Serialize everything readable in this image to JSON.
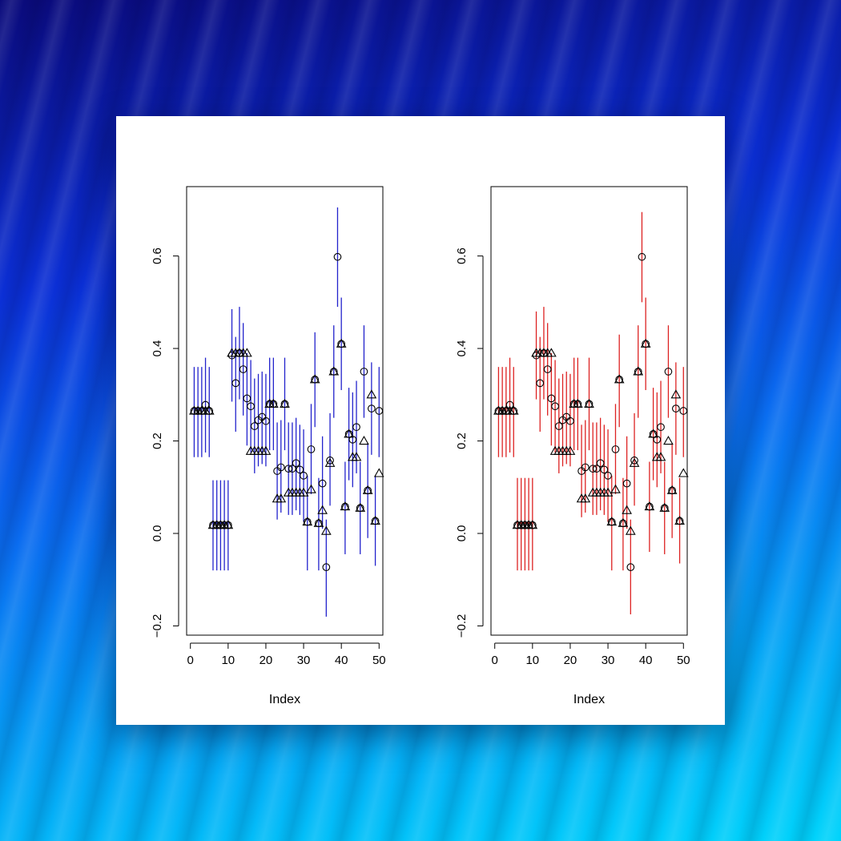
{
  "background": {
    "colors": [
      "#0a0a7a",
      "#0b2fd6",
      "#05a8f6",
      "#00d4fb"
    ]
  },
  "chart_data": [
    {
      "type": "scatter",
      "panel": "left",
      "error_bar_color": "#2222cc",
      "xlabel": "Index",
      "ylabel": "",
      "xlim": [
        -1,
        51
      ],
      "ylim": [
        -0.22,
        0.75
      ],
      "xticks": [
        0,
        10,
        20,
        30,
        40,
        50
      ],
      "yticks": [
        -0.2,
        0.0,
        0.2,
        0.4,
        0.6
      ],
      "grid": false,
      "legend": "none",
      "x": [
        1,
        2,
        3,
        4,
        5,
        6,
        7,
        8,
        9,
        10,
        11,
        12,
        13,
        14,
        15,
        16,
        17,
        18,
        19,
        20,
        21,
        22,
        23,
        24,
        25,
        26,
        27,
        28,
        29,
        30,
        31,
        32,
        33,
        34,
        35,
        36,
        37,
        38,
        39,
        40,
        41,
        42,
        43,
        44,
        45,
        46,
        47,
        48,
        49,
        50
      ],
      "circle": [
        0.265,
        0.265,
        0.265,
        0.278,
        0.265,
        0.018,
        0.018,
        0.018,
        0.018,
        0.018,
        0.385,
        0.325,
        0.39,
        0.355,
        0.292,
        0.275,
        0.232,
        0.245,
        0.252,
        0.243,
        0.28,
        0.28,
        0.135,
        0.143,
        0.28,
        0.14,
        0.14,
        0.152,
        0.138,
        0.125,
        0.025,
        0.182,
        0.333,
        0.022,
        0.108,
        -0.073,
        0.158,
        0.35,
        0.598,
        0.41,
        0.058,
        0.215,
        0.203,
        0.23,
        0.055,
        0.35,
        0.093,
        0.27,
        0.027,
        0.265
      ],
      "triangle": [
        0.265,
        0.265,
        0.265,
        0.265,
        0.265,
        0.018,
        0.018,
        0.018,
        0.018,
        0.018,
        0.39,
        0.39,
        0.39,
        0.39,
        0.39,
        0.178,
        0.178,
        0.178,
        0.178,
        0.178,
        0.28,
        0.28,
        0.075,
        0.075,
        0.28,
        0.088,
        0.088,
        0.088,
        0.088,
        0.088,
        0.025,
        0.095,
        0.333,
        0.022,
        0.05,
        0.005,
        0.152,
        0.35,
        null,
        0.41,
        0.058,
        0.215,
        0.165,
        0.165,
        0.055,
        0.2,
        0.093,
        0.3,
        0.027,
        0.13
      ],
      "lower": [
        0.165,
        0.165,
        0.165,
        0.175,
        0.165,
        -0.08,
        -0.08,
        -0.08,
        -0.08,
        -0.08,
        0.285,
        0.22,
        0.29,
        0.255,
        0.19,
        0.175,
        0.13,
        0.145,
        0.15,
        0.145,
        0.18,
        0.18,
        0.03,
        0.045,
        0.18,
        0.04,
        0.04,
        0.05,
        0.04,
        0.025,
        -0.08,
        0.085,
        0.23,
        -0.08,
        0.01,
        -0.18,
        0.06,
        0.25,
        0.49,
        0.31,
        -0.045,
        0.115,
        0.1,
        0.13,
        -0.045,
        0.25,
        -0.01,
        0.17,
        -0.07,
        0.165
      ],
      "upper": [
        0.36,
        0.36,
        0.36,
        0.38,
        0.36,
        0.115,
        0.115,
        0.115,
        0.115,
        0.115,
        0.485,
        0.425,
        0.49,
        0.455,
        0.39,
        0.375,
        0.335,
        0.345,
        0.35,
        0.345,
        0.38,
        0.38,
        0.24,
        0.245,
        0.38,
        0.24,
        0.24,
        0.25,
        0.235,
        0.225,
        0.125,
        0.28,
        0.435,
        0.12,
        0.21,
        0.03,
        0.26,
        0.45,
        0.705,
        0.51,
        0.155,
        0.315,
        0.305,
        0.33,
        0.155,
        0.45,
        0.195,
        0.37,
        0.125,
        0.36
      ]
    },
    {
      "type": "scatter",
      "panel": "right",
      "error_bar_color": "#dd2222",
      "xlabel": "Index",
      "ylabel": "",
      "xlim": [
        -1,
        51
      ],
      "ylim": [
        -0.22,
        0.75
      ],
      "xticks": [
        0,
        10,
        20,
        30,
        40,
        50
      ],
      "yticks": [
        -0.2,
        0.0,
        0.2,
        0.4,
        0.6
      ],
      "grid": false,
      "legend": "none",
      "x": [
        1,
        2,
        3,
        4,
        5,
        6,
        7,
        8,
        9,
        10,
        11,
        12,
        13,
        14,
        15,
        16,
        17,
        18,
        19,
        20,
        21,
        22,
        23,
        24,
        25,
        26,
        27,
        28,
        29,
        30,
        31,
        32,
        33,
        34,
        35,
        36,
        37,
        38,
        39,
        40,
        41,
        42,
        43,
        44,
        45,
        46,
        47,
        48,
        49,
        50
      ],
      "circle": [
        0.265,
        0.265,
        0.265,
        0.278,
        0.265,
        0.018,
        0.018,
        0.018,
        0.018,
        0.018,
        0.385,
        0.325,
        0.39,
        0.355,
        0.292,
        0.275,
        0.232,
        0.245,
        0.252,
        0.243,
        0.28,
        0.28,
        0.135,
        0.143,
        0.28,
        0.14,
        0.14,
        0.152,
        0.138,
        0.125,
        0.025,
        0.182,
        0.333,
        0.022,
        0.108,
        -0.073,
        0.158,
        0.35,
        0.598,
        0.41,
        0.058,
        0.215,
        0.203,
        0.23,
        0.055,
        0.35,
        0.093,
        0.27,
        0.027,
        0.265
      ],
      "triangle": [
        0.265,
        0.265,
        0.265,
        0.265,
        0.265,
        0.018,
        0.018,
        0.018,
        0.018,
        0.018,
        0.39,
        0.39,
        0.39,
        0.39,
        0.39,
        0.178,
        0.178,
        0.178,
        0.178,
        0.178,
        0.28,
        0.28,
        0.075,
        0.075,
        0.28,
        0.088,
        0.088,
        0.088,
        0.088,
        0.088,
        0.025,
        0.095,
        0.333,
        0.022,
        0.05,
        0.005,
        0.152,
        0.35,
        null,
        0.41,
        0.058,
        0.215,
        0.165,
        0.165,
        0.055,
        0.2,
        0.093,
        0.3,
        0.027,
        0.13
      ],
      "lower": [
        0.165,
        0.165,
        0.165,
        0.175,
        0.165,
        -0.08,
        -0.08,
        -0.08,
        -0.08,
        -0.08,
        0.29,
        0.22,
        0.29,
        0.255,
        0.19,
        0.175,
        0.13,
        0.145,
        0.15,
        0.145,
        0.18,
        0.18,
        0.035,
        0.045,
        0.18,
        0.04,
        0.04,
        0.05,
        0.04,
        0.025,
        -0.08,
        0.085,
        0.23,
        -0.08,
        0.01,
        -0.175,
        0.06,
        0.25,
        0.5,
        0.31,
        -0.04,
        0.115,
        0.1,
        0.13,
        -0.045,
        0.25,
        -0.01,
        0.17,
        -0.065,
        0.165
      ],
      "upper": [
        0.36,
        0.36,
        0.36,
        0.38,
        0.36,
        0.12,
        0.12,
        0.12,
        0.12,
        0.12,
        0.48,
        0.425,
        0.49,
        0.455,
        0.39,
        0.375,
        0.335,
        0.345,
        0.35,
        0.345,
        0.38,
        0.38,
        0.235,
        0.245,
        0.38,
        0.24,
        0.24,
        0.25,
        0.235,
        0.225,
        0.125,
        0.28,
        0.43,
        0.12,
        0.21,
        0.03,
        0.26,
        0.45,
        0.695,
        0.51,
        0.155,
        0.315,
        0.305,
        0.33,
        0.155,
        0.45,
        0.195,
        0.37,
        0.12,
        0.36
      ]
    }
  ]
}
